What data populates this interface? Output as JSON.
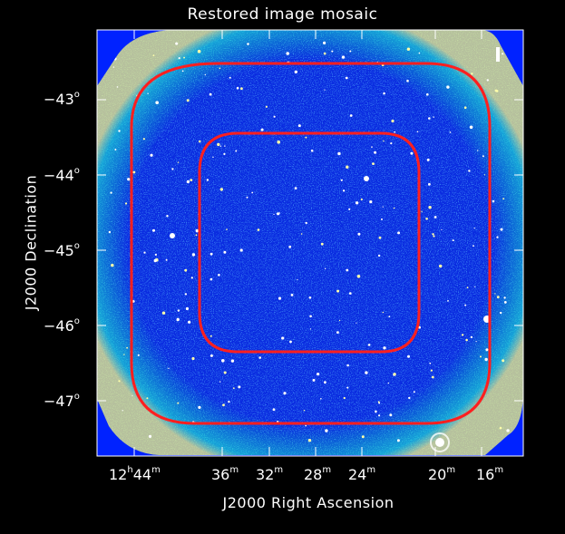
{
  "title": "Restored image mosaic",
  "xlabel": "J2000 Right Ascension",
  "ylabel": "J2000 Declination",
  "yticks": [
    "−43",
    "−44",
    "−45",
    "−46",
    "−47"
  ],
  "xticks": {
    "t0": {
      "h": "12",
      "m": "44"
    },
    "t1": "36",
    "t2": "32",
    "t3": "28",
    "t4": "24",
    "t5": "20",
    "t6": "16"
  },
  "units": {
    "hour": "h",
    "minute": "m",
    "degree": "o"
  },
  "stokes_label": "I",
  "colors": {
    "background": "#0022ff",
    "contour": "#ff1f1f",
    "frame": "#ffffff"
  }
}
